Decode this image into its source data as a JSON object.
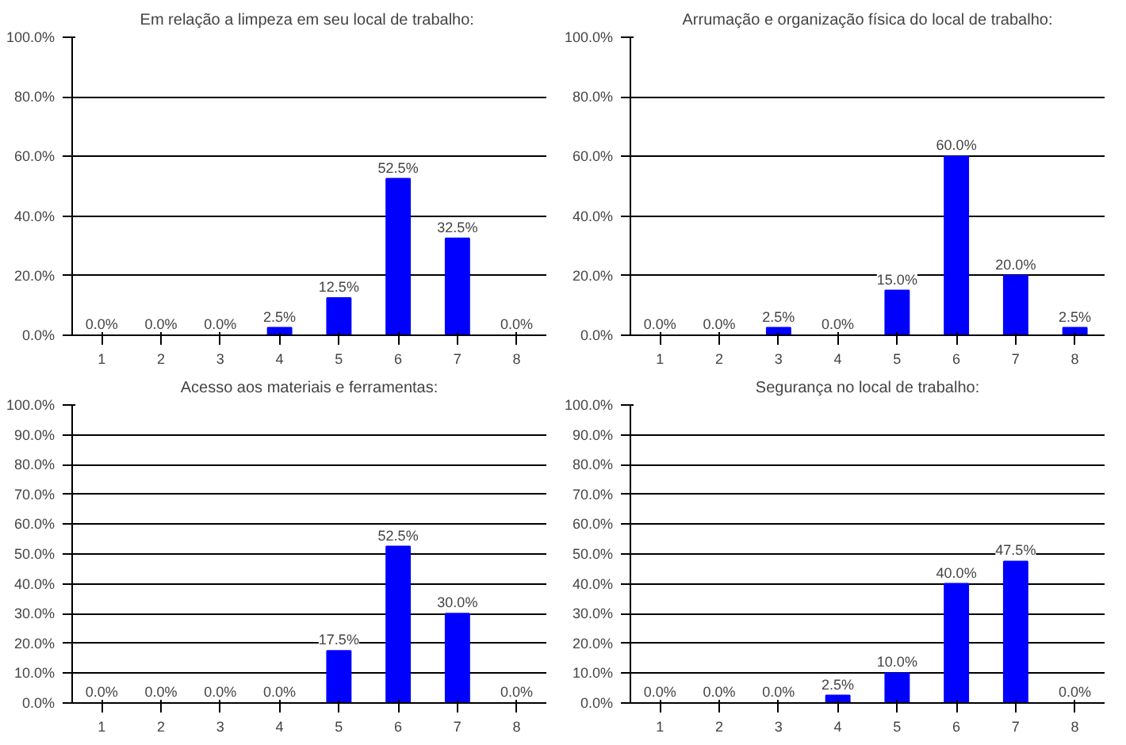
{
  "chart_data": [
    {
      "type": "bar",
      "title": "Em relação a limpeza em seu  local de trabalho:",
      "categories": [
        "1",
        "2",
        "3",
        "4",
        "5",
        "6",
        "7",
        "8"
      ],
      "series": [
        {
          "color": "#0000ff",
          "values": [
            0,
            0,
            0,
            2.5,
            12.5,
            52.5,
            32.5,
            0
          ]
        }
      ],
      "value_labels": [
        "0.0%",
        "0.0%",
        "0.0%",
        "2.5%",
        "12.5%",
        "52.5%",
        "32.5%",
        "0.0%"
      ],
      "ylim": [
        0,
        100
      ],
      "yticks": [
        {
          "value": 0,
          "label": "0.0%"
        },
        {
          "value": 20,
          "label": "20.0%"
        },
        {
          "value": 40,
          "label": "40.0%"
        },
        {
          "value": 60,
          "label": "60.0%"
        },
        {
          "value": 80,
          "label": "80.0%"
        },
        {
          "value": 100,
          "label": "100.0%"
        }
      ],
      "grid": "y"
    },
    {
      "type": "bar",
      "title": "Arrumação e organização física do local de trabalho:",
      "categories": [
        "1",
        "2",
        "3",
        "4",
        "5",
        "6",
        "7",
        "8"
      ],
      "series": [
        {
          "color": "#0000ff",
          "values": [
            0,
            0,
            2.5,
            0,
            15,
            60,
            20,
            2.5
          ]
        }
      ],
      "value_labels": [
        "0.0%",
        "0.0%",
        "2.5%",
        "0.0%",
        "15.0%",
        "60.0%",
        "20.0%",
        "2.5%"
      ],
      "ylim": [
        0,
        100
      ],
      "yticks": [
        {
          "value": 0,
          "label": "0.0%"
        },
        {
          "value": 20,
          "label": "20.0%"
        },
        {
          "value": 40,
          "label": "40.0%"
        },
        {
          "value": 60,
          "label": "60.0%"
        },
        {
          "value": 80,
          "label": "80.0%"
        },
        {
          "value": 100,
          "label": "100.0%"
        }
      ],
      "grid": "y"
    },
    {
      "type": "bar",
      "title": "Acesso aos materiais e ferramentas:",
      "categories": [
        "1",
        "2",
        "3",
        "4",
        "5",
        "6",
        "7",
        "8"
      ],
      "series": [
        {
          "color": "#0000ff",
          "values": [
            0,
            0,
            0,
            0,
            17.5,
            52.5,
            30,
            0
          ]
        }
      ],
      "value_labels": [
        "0.0%",
        "0.0%",
        "0.0%",
        "0.0%",
        "17.5%",
        "52.5%",
        "30.0%",
        "0.0%"
      ],
      "ylim": [
        0,
        100
      ],
      "yticks": [
        {
          "value": 0,
          "label": "0.0%"
        },
        {
          "value": 10,
          "label": "10.0%"
        },
        {
          "value": 20,
          "label": "20.0%"
        },
        {
          "value": 30,
          "label": "30.0%"
        },
        {
          "value": 40,
          "label": "40.0%"
        },
        {
          "value": 50,
          "label": "50.0%"
        },
        {
          "value": 60,
          "label": "60.0%"
        },
        {
          "value": 70,
          "label": "70.0%"
        },
        {
          "value": 80,
          "label": "80.0%"
        },
        {
          "value": 90,
          "label": "90.0%"
        },
        {
          "value": 100,
          "label": "100.0%"
        }
      ],
      "grid": "y"
    },
    {
      "type": "bar",
      "title": "Segurança no local de trabalho:",
      "categories": [
        "1",
        "2",
        "3",
        "4",
        "5",
        "6",
        "7",
        "8"
      ],
      "series": [
        {
          "color": "#0000ff",
          "values": [
            0,
            0,
            0,
            2.5,
            10,
            40,
            47.5,
            0
          ]
        }
      ],
      "value_labels": [
        "0.0%",
        "0.0%",
        "0.0%",
        "2.5%",
        "10.0%",
        "40.0%",
        "47.5%",
        "0.0%"
      ],
      "ylim": [
        0,
        100
      ],
      "yticks": [
        {
          "value": 0,
          "label": "0.0%"
        },
        {
          "value": 10,
          "label": "10.0%"
        },
        {
          "value": 20,
          "label": "20.0%"
        },
        {
          "value": 30,
          "label": "30.0%"
        },
        {
          "value": 40,
          "label": "40.0%"
        },
        {
          "value": 50,
          "label": "50.0%"
        },
        {
          "value": 60,
          "label": "60.0%"
        },
        {
          "value": 70,
          "label": "70.0%"
        },
        {
          "value": 80,
          "label": "80.0%"
        },
        {
          "value": 90,
          "label": "90.0%"
        },
        {
          "value": 100,
          "label": "100.0%"
        }
      ],
      "grid": "y"
    }
  ]
}
